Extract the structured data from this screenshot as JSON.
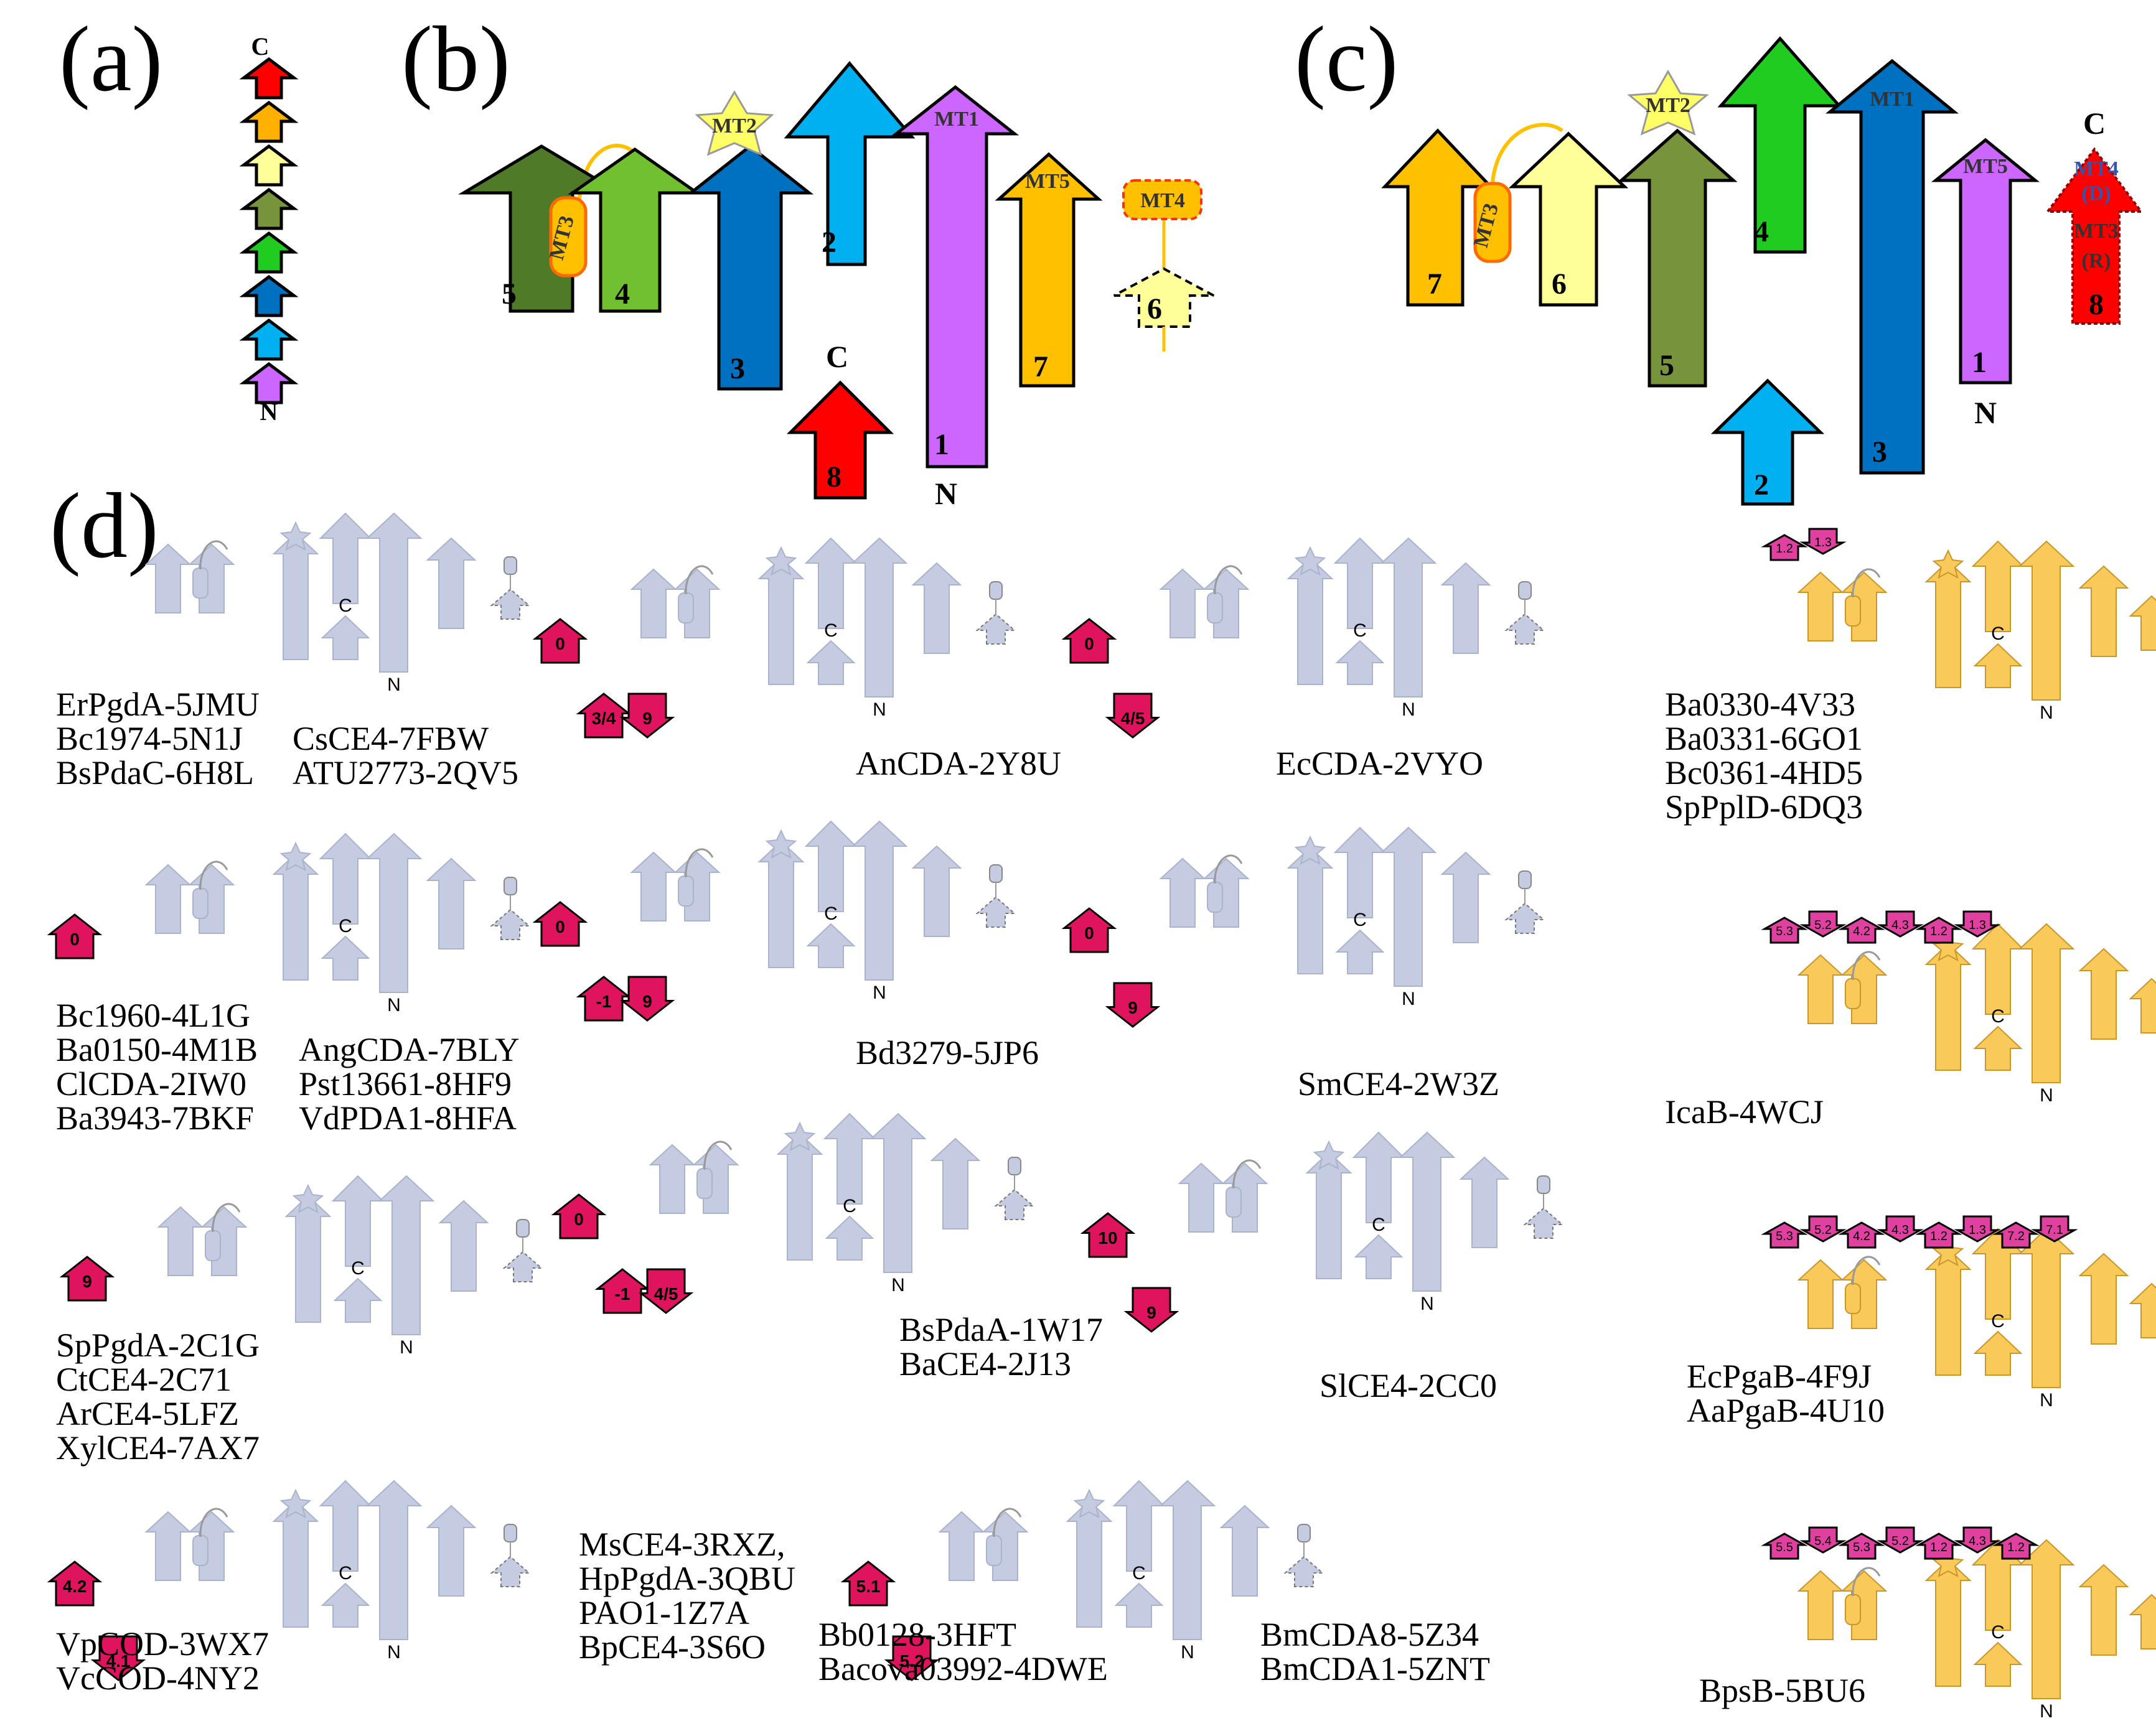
{
  "panels": {
    "a": "(a)",
    "b": "(b)",
    "c": "(c)",
    "d": "(d)"
  },
  "panel_a": {
    "c_label": "C",
    "n_label": "N",
    "colors": [
      "#ff0000",
      "#ffb000",
      "#ffff99",
      "#77933c",
      "#1fcc1f",
      "#0070c0",
      "#00b0f0",
      "#cc66ff"
    ]
  },
  "panel_b": {
    "strands": [
      {
        "num": "5",
        "color": "#4f7a28"
      },
      {
        "num": "4",
        "color": "#70c030"
      },
      {
        "num": "3",
        "color": "#0070c0"
      },
      {
        "num": "2",
        "color": "#00b0f0"
      },
      {
        "num": "1",
        "color": "#cc66ff"
      },
      {
        "num": "7",
        "color": "#ffc000"
      },
      {
        "num": "6",
        "color": "#ffff99"
      },
      {
        "num": "8",
        "color": "#ff0000"
      }
    ],
    "mt1": "MT1",
    "mt2": "MT2",
    "mt3": "MT3",
    "mt4": "MT4",
    "mt5": "MT5",
    "c_label": "C",
    "n_label": "N"
  },
  "panel_c": {
    "strands": [
      {
        "num": "7",
        "color": "#ffc000"
      },
      {
        "num": "6",
        "color": "#ffff99"
      },
      {
        "num": "5",
        "color": "#77933c"
      },
      {
        "num": "4",
        "color": "#1fcc1f"
      },
      {
        "num": "3",
        "color": "#0070c0"
      },
      {
        "num": "2",
        "color": "#00b0f0"
      },
      {
        "num": "1",
        "color": "#cc66ff"
      },
      {
        "num": "8",
        "color": "#ff0000"
      }
    ],
    "mt1": "MT1",
    "mt2": "MT2",
    "mt3": "MT3",
    "mt5": "MT5",
    "red_mt4": "MT4",
    "red_d": "(D)",
    "red_mt3": "MT3",
    "red_r": "(R)",
    "c_label": "C",
    "n_label": "N"
  },
  "panel_d": {
    "groups": [
      {
        "labels": [
          "ErPgdA-5JMU",
          "Bc1974-5N1J",
          "BsPdaC-6H8L",
          "CsCE4-7FBW",
          "ATU2773-2QV5"
        ]
      },
      {
        "labels": [
          "AnCDA-2Y8U"
        ],
        "ins": [
          "0",
          "3/4",
          "9"
        ]
      },
      {
        "labels": [
          "EcCDA-2VYO"
        ],
        "ins": [
          "0",
          "4/5"
        ]
      },
      {
        "labels": [
          "Ba0330-4V33",
          "Ba0331-6GO1",
          "Bc0361-4HD5",
          "SpPplD-6DQ3"
        ],
        "ins": [
          "1.2",
          "1.3"
        ]
      },
      {
        "labels": [
          "Bc1960-4L1G",
          "Ba0150-4M1B",
          "ClCDA-2IW0",
          "Ba3943-7BKF",
          "AngCDA-7BLY",
          "Pst13661-8HF9",
          "VdPDA1-8HFA"
        ],
        "ins": [
          "0"
        ]
      },
      {
        "labels": [
          "Bd3279-5JP6"
        ],
        "ins": [
          "0",
          "-1",
          "9"
        ]
      },
      {
        "labels": [
          "SmCE4-2W3Z"
        ],
        "ins": [
          "0",
          "9"
        ]
      },
      {
        "labels": [
          "IcaB-4WCJ"
        ],
        "ins": [
          "5.3",
          "5.2",
          "4.2",
          "4.3",
          "1.2",
          "1.3"
        ]
      },
      {
        "labels": [
          "SpPgdA-2C1G",
          "CtCE4-2C71",
          "ArCE4-5LFZ",
          "XylCE4-7AX7"
        ],
        "ins": [
          "9"
        ]
      },
      {
        "labels": [
          "BsPdaA-1W17",
          "BaCE4-2J13"
        ],
        "ins": [
          "0",
          "-1",
          "4/5"
        ]
      },
      {
        "labels": [
          "SlCE4-2CC0"
        ],
        "ins": [
          "10",
          "9"
        ]
      },
      {
        "labels": [
          "EcPgaB-4F9J",
          "AaPgaB-4U10"
        ],
        "ins": [
          "5.3",
          "5.2",
          "4.2",
          "4.3",
          "1.2",
          "1.3",
          "7.2",
          "7.1"
        ]
      },
      {
        "labels": [
          "VpCOD-3WX7",
          "VcCOD-4NY2"
        ],
        "ins": [
          "4.2",
          "4.1"
        ]
      },
      {
        "labels": [
          "MsCE4-3RXZ,",
          "HpPgdA-3QBU",
          "PAO1-1Z7A",
          "BpCE4-3S6O",
          "Bb0128-3HFT",
          "Bacova03992-4DWE",
          "BmCDA8-5Z34",
          "BmCDA1-5ZNT"
        ],
        "ins": [
          "5.1",
          "5.2"
        ]
      },
      {
        "labels": [
          "BpsB-5BU6"
        ],
        "ins": [
          "5.5",
          "5.4",
          "5.3",
          "5.2",
          "1.2",
          "4.3",
          "1.2"
        ]
      }
    ],
    "c_label": "C",
    "n_label": "N"
  },
  "colors": {
    "template": "#c5cbe0",
    "template_stroke": "#aab2cc",
    "yellow_template": "#f9c95a",
    "insertion": "#e0135e",
    "insertion_small": "#e040a0"
  }
}
